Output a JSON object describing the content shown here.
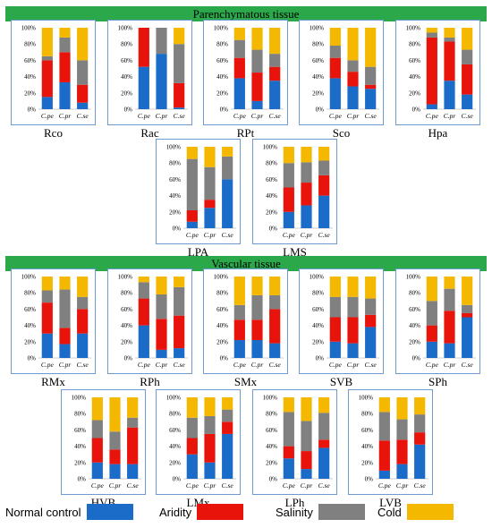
{
  "sections": {
    "parenchymatous": "Parenchymatous tissue",
    "vascular": "Vascular tissue"
  },
  "colors": {
    "normal_control": "#1a6cc8",
    "aridity": "#e8140c",
    "salinity": "#808080",
    "cold": "#f5b800"
  },
  "legend": [
    {
      "label": "Normal control",
      "color": "#1a6cc8"
    },
    {
      "label": "Aridity",
      "color": "#e8140c"
    },
    {
      "label": "Salinity",
      "color": "#808080"
    },
    {
      "label": "Cold",
      "color": "#f5b800"
    }
  ],
  "chart_data": [
    {
      "type": "bar",
      "stacked": true,
      "title": "Rco",
      "categories": [
        "C.pe",
        "C.pr",
        "C.se"
      ],
      "yticks": [
        "0%",
        "20%",
        "40%",
        "60%",
        "80%",
        "100%"
      ],
      "ylim": [
        0,
        100
      ],
      "series": [
        {
          "name": "Normal control",
          "values": [
            15,
            33,
            8
          ]
        },
        {
          "name": "Aridity",
          "values": [
            45,
            37,
            22
          ]
        },
        {
          "name": "Salinity",
          "values": [
            5,
            18,
            30
          ]
        },
        {
          "name": "Cold",
          "values": [
            35,
            12,
            40
          ]
        }
      ]
    },
    {
      "type": "bar",
      "stacked": true,
      "title": "Rac",
      "categories": [
        "C.pe",
        "C.pr",
        "C.se"
      ],
      "yticks": [
        "0%",
        "20%",
        "40%",
        "60%",
        "80%",
        "100%"
      ],
      "ylim": [
        0,
        100
      ],
      "series": [
        {
          "name": "Normal control",
          "values": [
            52,
            68,
            2
          ]
        },
        {
          "name": "Aridity",
          "values": [
            48,
            0,
            30
          ]
        },
        {
          "name": "Salinity",
          "values": [
            0,
            32,
            48
          ]
        },
        {
          "name": "Cold",
          "values": [
            0,
            0,
            20
          ]
        }
      ]
    },
    {
      "type": "bar",
      "stacked": true,
      "title": "RPt",
      "categories": [
        "C.pe",
        "C.pr",
        "C.se"
      ],
      "yticks": [
        "0%",
        "20%",
        "40%",
        "60%",
        "80%",
        "100%"
      ],
      "ylim": [
        0,
        100
      ],
      "series": [
        {
          "name": "Normal control",
          "values": [
            38,
            10,
            35
          ]
        },
        {
          "name": "Aridity",
          "values": [
            25,
            35,
            17
          ]
        },
        {
          "name": "Salinity",
          "values": [
            22,
            28,
            16
          ]
        },
        {
          "name": "Cold",
          "values": [
            15,
            27,
            32
          ]
        }
      ]
    },
    {
      "type": "bar",
      "stacked": true,
      "title": "Sco",
      "categories": [
        "C.pe",
        "C.pr",
        "C.se"
      ],
      "yticks": [
        "0%",
        "20%",
        "40%",
        "60%",
        "80%",
        "100%"
      ],
      "ylim": [
        0,
        100
      ],
      "series": [
        {
          "name": "Normal control",
          "values": [
            38,
            28,
            25
          ]
        },
        {
          "name": "Aridity",
          "values": [
            25,
            18,
            5
          ]
        },
        {
          "name": "Salinity",
          "values": [
            15,
            14,
            22
          ]
        },
        {
          "name": "Cold",
          "values": [
            22,
            40,
            48
          ]
        }
      ]
    },
    {
      "type": "bar",
      "stacked": true,
      "title": "Hpa",
      "categories": [
        "C.pe",
        "C.pr",
        "C.se"
      ],
      "yticks": [
        "0%",
        "20%",
        "40%",
        "60%",
        "80%",
        "100%"
      ],
      "ylim": [
        0,
        100
      ],
      "series": [
        {
          "name": "Normal control",
          "values": [
            6,
            35,
            18
          ]
        },
        {
          "name": "Aridity",
          "values": [
            82,
            48,
            37
          ]
        },
        {
          "name": "Salinity",
          "values": [
            6,
            5,
            18
          ]
        },
        {
          "name": "Cold",
          "values": [
            6,
            12,
            27
          ]
        }
      ]
    },
    {
      "type": "bar",
      "stacked": true,
      "title": "LPA",
      "categories": [
        "C.pe",
        "C.pr",
        "C.se"
      ],
      "yticks": [
        "0%",
        "20%",
        "40%",
        "60%",
        "80%",
        "100%"
      ],
      "ylim": [
        0,
        100
      ],
      "series": [
        {
          "name": "Normal control",
          "values": [
            8,
            25,
            60
          ]
        },
        {
          "name": "Aridity",
          "values": [
            14,
            10,
            0
          ]
        },
        {
          "name": "Salinity",
          "values": [
            63,
            40,
            28
          ]
        },
        {
          "name": "Cold",
          "values": [
            15,
            25,
            12
          ]
        }
      ]
    },
    {
      "type": "bar",
      "stacked": true,
      "title": "LMS",
      "categories": [
        "C.pe",
        "C.pr",
        "C.se"
      ],
      "yticks": [
        "0%",
        "20%",
        "40%",
        "60%",
        "80%",
        "100%"
      ],
      "ylim": [
        0,
        100
      ],
      "series": [
        {
          "name": "Normal control",
          "values": [
            20,
            28,
            40
          ]
        },
        {
          "name": "Aridity",
          "values": [
            30,
            28,
            25
          ]
        },
        {
          "name": "Salinity",
          "values": [
            30,
            25,
            18
          ]
        },
        {
          "name": "Cold",
          "values": [
            20,
            19,
            17
          ]
        }
      ]
    },
    {
      "type": "bar",
      "stacked": true,
      "title": "RMx",
      "categories": [
        "C.pe",
        "C.pr",
        "C.se"
      ],
      "yticks": [
        "0%",
        "20%",
        "40%",
        "60%",
        "80%",
        "100%"
      ],
      "ylim": [
        0,
        100
      ],
      "series": [
        {
          "name": "Normal control",
          "values": [
            30,
            17,
            30
          ]
        },
        {
          "name": "Aridity",
          "values": [
            38,
            20,
            30
          ]
        },
        {
          "name": "Salinity",
          "values": [
            15,
            47,
            15
          ]
        },
        {
          "name": "Cold",
          "values": [
            17,
            16,
            25
          ]
        }
      ]
    },
    {
      "type": "bar",
      "stacked": true,
      "title": "RPh",
      "categories": [
        "C.pe",
        "C.pr",
        "C.se"
      ],
      "yticks": [
        "0%",
        "20%",
        "40%",
        "60%",
        "80%",
        "100%"
      ],
      "ylim": [
        0,
        100
      ],
      "series": [
        {
          "name": "Normal control",
          "values": [
            40,
            10,
            12
          ]
        },
        {
          "name": "Aridity",
          "values": [
            33,
            38,
            40
          ]
        },
        {
          "name": "Salinity",
          "values": [
            20,
            30,
            35
          ]
        },
        {
          "name": "Cold",
          "values": [
            7,
            22,
            13
          ]
        }
      ]
    },
    {
      "type": "bar",
      "stacked": true,
      "title": "SMx",
      "categories": [
        "C.pe",
        "C.pr",
        "C.se"
      ],
      "yticks": [
        "0%",
        "20%",
        "40%",
        "60%",
        "80%",
        "100%"
      ],
      "ylim": [
        0,
        100
      ],
      "series": [
        {
          "name": "Normal control",
          "values": [
            22,
            22,
            18
          ]
        },
        {
          "name": "Aridity",
          "values": [
            25,
            25,
            42
          ]
        },
        {
          "name": "Salinity",
          "values": [
            18,
            30,
            17
          ]
        },
        {
          "name": "Cold",
          "values": [
            35,
            23,
            23
          ]
        }
      ]
    },
    {
      "type": "bar",
      "stacked": true,
      "title": "SVB",
      "categories": [
        "C.pe",
        "C.pr",
        "C.se"
      ],
      "yticks": [
        "0%",
        "20%",
        "40%",
        "60%",
        "80%",
        "100%"
      ],
      "ylim": [
        0,
        100
      ],
      "series": [
        {
          "name": "Normal control",
          "values": [
            20,
            18,
            38
          ]
        },
        {
          "name": "Aridity",
          "values": [
            30,
            32,
            15
          ]
        },
        {
          "name": "Salinity",
          "values": [
            25,
            25,
            20
          ]
        },
        {
          "name": "Cold",
          "values": [
            25,
            25,
            27
          ]
        }
      ]
    },
    {
      "type": "bar",
      "stacked": true,
      "title": "SPh",
      "categories": [
        "C.pe",
        "C.pr",
        "C.se"
      ],
      "yticks": [
        "0%",
        "20%",
        "40%",
        "60%",
        "80%",
        "100%"
      ],
      "ylim": [
        0,
        100
      ],
      "series": [
        {
          "name": "Normal control",
          "values": [
            20,
            18,
            50
          ]
        },
        {
          "name": "Aridity",
          "values": [
            20,
            40,
            5
          ]
        },
        {
          "name": "Salinity",
          "values": [
            30,
            27,
            10
          ]
        },
        {
          "name": "Cold",
          "values": [
            30,
            15,
            35
          ]
        }
      ]
    },
    {
      "type": "bar",
      "stacked": true,
      "title": "HVB",
      "categories": [
        "C.pe",
        "C.pr",
        "C.se"
      ],
      "yticks": [
        "0%",
        "20%",
        "40%",
        "60%",
        "80%",
        "100%"
      ],
      "ylim": [
        0,
        100
      ],
      "series": [
        {
          "name": "Normal control",
          "values": [
            20,
            18,
            18
          ]
        },
        {
          "name": "Aridity",
          "values": [
            30,
            18,
            45
          ]
        },
        {
          "name": "Salinity",
          "values": [
            22,
            22,
            12
          ]
        },
        {
          "name": "Cold",
          "values": [
            28,
            42,
            25
          ]
        }
      ]
    },
    {
      "type": "bar",
      "stacked": true,
      "title": "LMx",
      "categories": [
        "C.pe",
        "C.pr",
        "C.se"
      ],
      "yticks": [
        "0%",
        "20%",
        "40%",
        "60%",
        "80%",
        "100%"
      ],
      "ylim": [
        0,
        100
      ],
      "series": [
        {
          "name": "Normal control",
          "values": [
            30,
            20,
            55
          ]
        },
        {
          "name": "Aridity",
          "values": [
            20,
            35,
            15
          ]
        },
        {
          "name": "Salinity",
          "values": [
            25,
            22,
            15
          ]
        },
        {
          "name": "Cold",
          "values": [
            25,
            23,
            15
          ]
        }
      ]
    },
    {
      "type": "bar",
      "stacked": true,
      "title": "LPh",
      "categories": [
        "C.pe",
        "C.pr",
        "C.se"
      ],
      "yticks": [
        "0%",
        "20%",
        "40%",
        "60%",
        "80%",
        "100%"
      ],
      "ylim": [
        0,
        100
      ],
      "series": [
        {
          "name": "Normal control",
          "values": [
            25,
            12,
            38
          ]
        },
        {
          "name": "Aridity",
          "values": [
            15,
            22,
            10
          ]
        },
        {
          "name": "Salinity",
          "values": [
            42,
            37,
            33
          ]
        },
        {
          "name": "Cold",
          "values": [
            18,
            29,
            19
          ]
        }
      ]
    },
    {
      "type": "bar",
      "stacked": true,
      "title": "LVB",
      "categories": [
        "C.pe",
        "C.pr",
        "C.se"
      ],
      "yticks": [
        "0%",
        "20%",
        "40%",
        "60%",
        "80%",
        "100%"
      ],
      "ylim": [
        0,
        100
      ],
      "series": [
        {
          "name": "Normal control",
          "values": [
            10,
            18,
            42
          ]
        },
        {
          "name": "Aridity",
          "values": [
            37,
            30,
            15
          ]
        },
        {
          "name": "Salinity",
          "values": [
            35,
            25,
            22
          ]
        },
        {
          "name": "Cold",
          "values": [
            18,
            27,
            21
          ]
        }
      ]
    }
  ]
}
